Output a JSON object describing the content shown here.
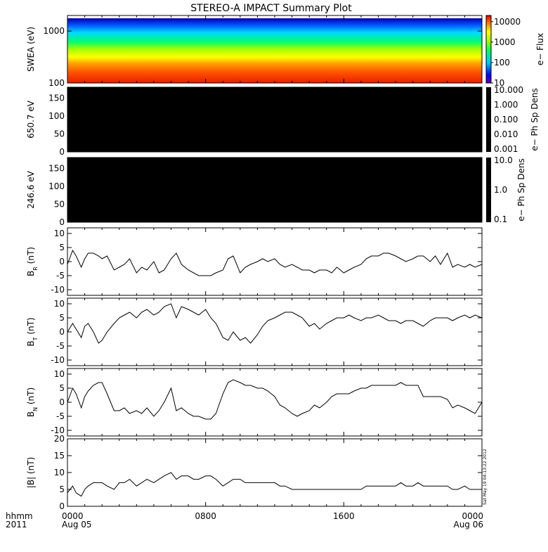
{
  "title": "STEREO-A IMPACT Summary Plot",
  "time_axis": {
    "left_label_top": "hhmm",
    "left_label_bottom": "2011",
    "ticks": [
      {
        "label": "0000",
        "sub": "Aug 05",
        "hour": 0
      },
      {
        "label": "0800",
        "sub": "",
        "hour": 8
      },
      {
        "label": "1600",
        "sub": "",
        "hour": 16
      },
      {
        "label": "0000",
        "sub": "Aug 06",
        "hour": 24
      }
    ]
  },
  "stamp": "Sat May 19 04:13:22 2012",
  "colors": {
    "line": "#000000",
    "spectrogram": [
      "#0000b0",
      "#0050ff",
      "#00d8ff",
      "#00ff70",
      "#a8ff00",
      "#ffff00",
      "#ffa000",
      "#ff5000",
      "#e82000"
    ],
    "black_panel": "#000000"
  },
  "chart_data": [
    {
      "type": "heatmap",
      "id": "swea",
      "ylabel": "SWEA (eV)",
      "yscale": "log",
      "ylim": [
        100,
        2000
      ],
      "yticks": [
        "1000",
        "100"
      ],
      "colorbar": {
        "label": "e− Flux",
        "ticks": [
          "10000",
          "1000",
          "100",
          "10"
        ],
        "range": [
          10,
          20000
        ],
        "scale": "log"
      },
      "x_range_hours": [
        0,
        24
      ]
    },
    {
      "type": "heatmap",
      "id": "pad650",
      "ylabel": "650.7 eV",
      "ylim": [
        0,
        180
      ],
      "yticks": [
        "150",
        "100",
        "50",
        "0"
      ],
      "fill": "no data (black)",
      "colorbar": {
        "label": "e− Ph Sp Dens",
        "ticks": [
          "10.000",
          "1.000",
          "0.100",
          "0.010",
          "0.001"
        ],
        "scale": "log"
      }
    },
    {
      "type": "heatmap",
      "id": "pad246",
      "ylabel": "246.6 eV",
      "ylim": [
        0,
        180
      ],
      "yticks": [
        "150",
        "100",
        "50",
        "0"
      ],
      "fill": "no data (black)",
      "colorbar": {
        "label": "e− Ph Sp Dens",
        "ticks": [
          "10.0",
          "1.0",
          "0.1"
        ],
        "scale": "log"
      }
    },
    {
      "type": "line",
      "id": "br",
      "ylabel_main": "B",
      "ylabel_sub": "R",
      "ylabel_unit": " (nT)",
      "ylim": [
        -12,
        12
      ],
      "yticks": [
        "10",
        "5",
        "0",
        "-5",
        "-10"
      ],
      "x_hours": [
        0.0,
        0.3,
        0.5,
        0.8,
        1.0,
        1.2,
        1.5,
        1.8,
        2.0,
        2.3,
        2.7,
        3.0,
        3.3,
        3.6,
        4.0,
        4.3,
        4.6,
        5.0,
        5.3,
        5.6,
        6.0,
        6.3,
        6.6,
        7.0,
        7.3,
        7.6,
        8.0,
        8.3,
        8.6,
        9.0,
        9.3,
        9.6,
        10.0,
        10.3,
        10.6,
        11.0,
        11.3,
        11.6,
        12.0,
        12.3,
        12.6,
        13.0,
        13.3,
        13.6,
        14.0,
        14.3,
        14.6,
        15.0,
        15.3,
        15.6,
        16.0,
        16.3,
        16.6,
        17.0,
        17.3,
        17.6,
        18.0,
        18.3,
        18.6,
        19.0,
        19.3,
        19.6,
        20.0,
        20.3,
        20.6,
        21.0,
        21.3,
        21.6,
        22.0,
        22.3,
        22.6,
        23.0,
        23.3,
        23.6,
        24.0
      ],
      "values": [
        -1,
        4,
        2,
        -2,
        1,
        3,
        3,
        2,
        1,
        2,
        -3,
        -2,
        -1,
        1,
        -4,
        -2,
        -3,
        0,
        -4,
        -3,
        1,
        3,
        -1,
        -3,
        -4,
        -5,
        -5,
        -5,
        -4,
        -3,
        1,
        2,
        -4,
        -2,
        -1,
        0,
        1,
        0,
        1,
        -1,
        -2,
        -1,
        -2,
        -3,
        -3,
        -4,
        -3,
        -3,
        -4,
        -2,
        -4,
        -3,
        -2,
        -1,
        1,
        2,
        2,
        3,
        3,
        2,
        1,
        0,
        1,
        2,
        2,
        0,
        2,
        -1,
        3,
        -2,
        -1,
        -2,
        -1,
        -2,
        -1
      ]
    },
    {
      "type": "line",
      "id": "bt",
      "ylabel_main": "B",
      "ylabel_sub": "T",
      "ylabel_unit": " (nT)",
      "ylim": [
        -12,
        12
      ],
      "yticks": [
        "10",
        "5",
        "0",
        "-5",
        "-10"
      ],
      "x_hours": [
        0.0,
        0.3,
        0.5,
        0.8,
        1.0,
        1.2,
        1.5,
        1.8,
        2.0,
        2.3,
        2.7,
        3.0,
        3.3,
        3.6,
        4.0,
        4.3,
        4.6,
        5.0,
        5.3,
        5.6,
        6.0,
        6.3,
        6.6,
        7.0,
        7.3,
        7.6,
        8.0,
        8.3,
        8.6,
        9.0,
        9.3,
        9.6,
        10.0,
        10.3,
        10.6,
        11.0,
        11.3,
        11.6,
        12.0,
        12.3,
        12.6,
        13.0,
        13.3,
        13.6,
        14.0,
        14.3,
        14.6,
        15.0,
        15.3,
        15.6,
        16.0,
        16.3,
        16.6,
        17.0,
        17.3,
        17.6,
        18.0,
        18.3,
        18.6,
        19.0,
        19.3,
        19.6,
        20.0,
        20.3,
        20.6,
        21.0,
        21.3,
        21.6,
        22.0,
        22.3,
        22.6,
        23.0,
        23.3,
        23.6,
        24.0
      ],
      "values": [
        0,
        3,
        1,
        -2,
        2,
        3,
        0,
        -4,
        -3,
        0,
        3,
        5,
        6,
        7,
        5,
        7,
        8,
        6,
        7,
        9,
        10,
        5,
        9,
        8,
        7,
        6,
        8,
        5,
        3,
        -2,
        -3,
        0,
        -3,
        -2,
        -4,
        -1,
        2,
        4,
        5,
        6,
        7,
        7,
        6,
        5,
        2,
        3,
        1,
        3,
        4,
        5,
        5,
        6,
        5,
        4,
        5,
        5,
        6,
        5,
        4,
        4,
        3,
        4,
        4,
        3,
        2,
        4,
        5,
        5,
        5,
        4,
        5,
        6,
        5,
        6,
        5
      ]
    },
    {
      "type": "line",
      "id": "bn",
      "ylabel_main": "B",
      "ylabel_sub": "N",
      "ylabel_unit": " (nT)",
      "ylim": [
        -12,
        12
      ],
      "yticks": [
        "10",
        "5",
        "0",
        "-5",
        "-10"
      ],
      "x_hours": [
        0.0,
        0.3,
        0.5,
        0.8,
        1.0,
        1.2,
        1.5,
        1.8,
        2.0,
        2.3,
        2.7,
        3.0,
        3.3,
        3.6,
        4.0,
        4.3,
        4.6,
        5.0,
        5.3,
        5.6,
        6.0,
        6.3,
        6.6,
        7.0,
        7.3,
        7.6,
        8.0,
        8.3,
        8.6,
        9.0,
        9.3,
        9.6,
        10.0,
        10.3,
        10.6,
        11.0,
        11.3,
        11.6,
        12.0,
        12.3,
        12.6,
        13.0,
        13.3,
        13.6,
        14.0,
        14.3,
        14.6,
        15.0,
        15.3,
        15.6,
        16.0,
        16.3,
        16.6,
        17.0,
        17.3,
        17.6,
        18.0,
        18.3,
        18.6,
        19.0,
        19.3,
        19.6,
        20.0,
        20.3,
        20.6,
        21.0,
        21.3,
        21.6,
        22.0,
        22.3,
        22.6,
        23.0,
        23.3,
        23.6,
        24.0
      ],
      "values": [
        0,
        5,
        3,
        -2,
        2,
        4,
        6,
        7,
        7,
        3,
        -3,
        -3,
        -2,
        -4,
        -3,
        -4,
        -2,
        -5,
        -3,
        0,
        5,
        -3,
        -2,
        -4,
        -5,
        -5,
        -6,
        -6,
        -4,
        3,
        7,
        8,
        7,
        6,
        6,
        5,
        5,
        4,
        2,
        -1,
        -2,
        -4,
        -5,
        -4,
        -3,
        -1,
        -2,
        0,
        2,
        3,
        3,
        3,
        4,
        5,
        5,
        6,
        6,
        6,
        6,
        6,
        7,
        6,
        6,
        6,
        2,
        2,
        2,
        2,
        1,
        -2,
        -1,
        -2,
        -3,
        -4,
        0
      ]
    },
    {
      "type": "line",
      "id": "bmag",
      "ylabel_main": "|B| (nT)",
      "ylim": [
        0,
        20
      ],
      "yticks": [
        "20",
        "15",
        "10",
        "5",
        "0"
      ],
      "x_hours": [
        0.0,
        0.3,
        0.5,
        0.8,
        1.0,
        1.2,
        1.5,
        1.8,
        2.0,
        2.3,
        2.7,
        3.0,
        3.3,
        3.6,
        4.0,
        4.3,
        4.6,
        5.0,
        5.3,
        5.6,
        6.0,
        6.3,
        6.6,
        7.0,
        7.3,
        7.6,
        8.0,
        8.3,
        8.6,
        9.0,
        9.3,
        9.6,
        10.0,
        10.3,
        10.6,
        11.0,
        11.3,
        11.6,
        12.0,
        12.3,
        12.6,
        13.0,
        13.3,
        13.6,
        14.0,
        14.3,
        14.6,
        15.0,
        15.3,
        15.6,
        16.0,
        16.3,
        16.6,
        17.0,
        17.3,
        17.6,
        18.0,
        18.3,
        18.6,
        19.0,
        19.3,
        19.6,
        20.0,
        20.3,
        20.6,
        21.0,
        21.3,
        21.6,
        22.0,
        22.3,
        22.6,
        23.0,
        23.3,
        23.6,
        24.0
      ],
      "values": [
        4,
        6,
        4,
        3,
        5,
        6,
        7,
        7,
        7,
        6,
        5,
        7,
        7,
        8,
        6,
        7,
        8,
        7,
        8,
        9,
        10,
        8,
        9,
        9,
        8,
        8,
        9,
        9,
        8,
        6,
        7,
        8,
        8,
        7,
        7,
        7,
        7,
        7,
        7,
        6,
        6,
        5,
        5,
        5,
        5,
        5,
        5,
        5,
        5,
        5,
        5,
        5,
        5,
        5,
        6,
        6,
        6,
        6,
        6,
        6,
        7,
        6,
        6,
        7,
        6,
        6,
        6,
        6,
        6,
        5,
        5,
        6,
        5,
        5,
        5
      ]
    }
  ]
}
